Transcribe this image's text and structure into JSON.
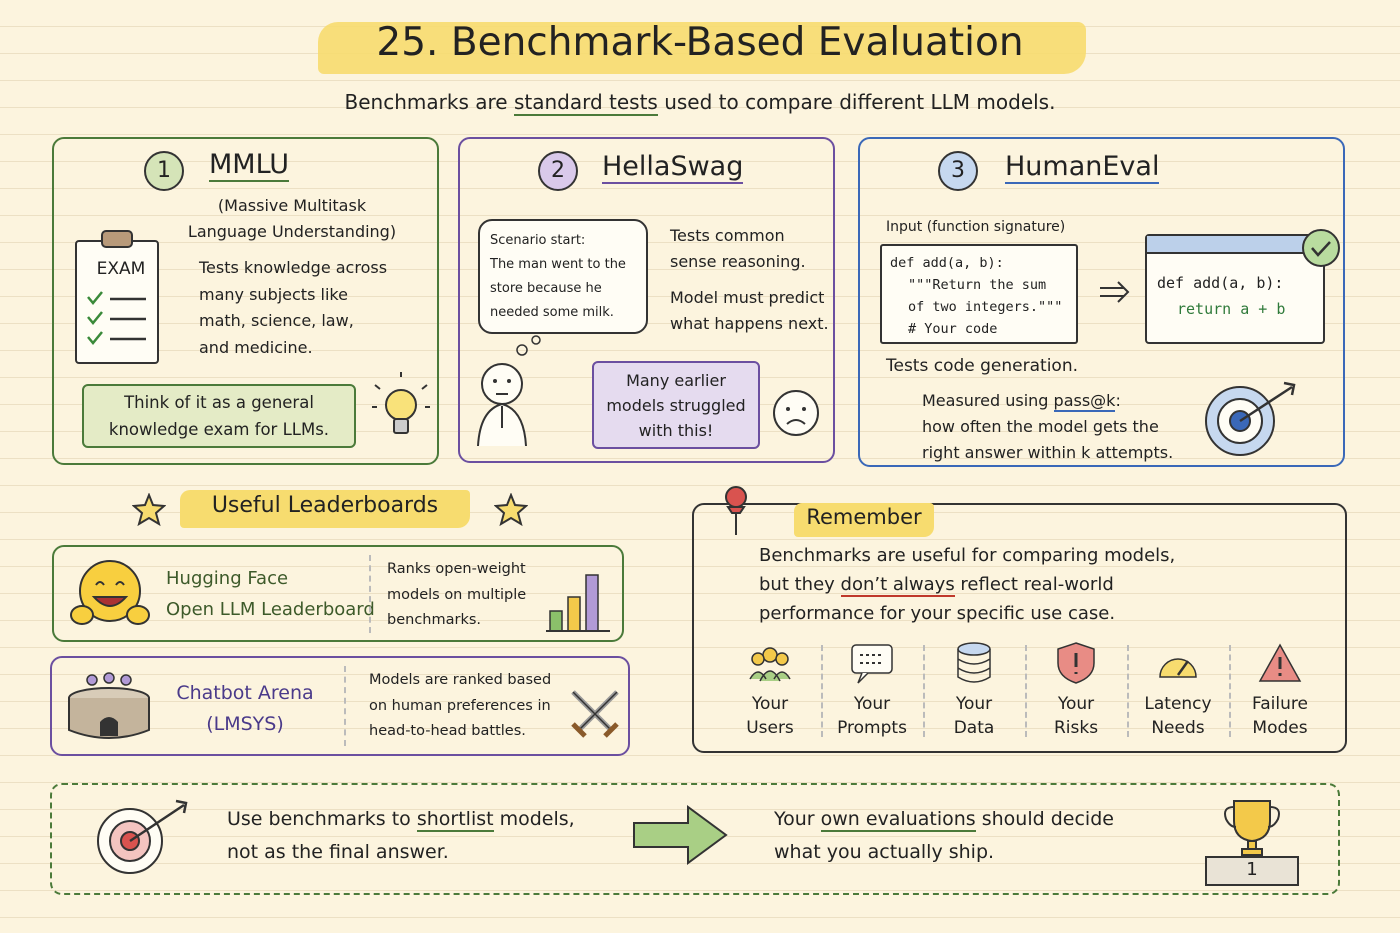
{
  "header": {
    "title": "25. Benchmark-Based Evaluation",
    "subtitle": [
      "Benchmarks are ",
      "standard tests",
      " used to compare different LLM models."
    ]
  },
  "benchmarks": [
    {
      "number": "1",
      "name": "MMLU",
      "full_name": [
        "(Massive Multitask",
        "Language Understanding)"
      ],
      "icon_label": "EXAM",
      "description": [
        "Tests knowledge across",
        "many subjects like",
        "math, science, law,",
        "and medicine."
      ],
      "note": [
        "Think of it as a general",
        "knowledge exam for LLMs."
      ]
    },
    {
      "number": "2",
      "name": "HellaSwag",
      "scenario": [
        "Scenario start:",
        "The man went to the",
        "store because he",
        "needed some milk."
      ],
      "description": [
        "Tests common",
        "sense reasoning."
      ],
      "task": [
        "Model must predict",
        "what happens next."
      ],
      "note": [
        "Many earlier",
        "models struggled",
        "with this!"
      ]
    },
    {
      "number": "3",
      "name": "HumanEval",
      "input_label": "Input (function signature)",
      "input_code": [
        "def add(a, b):",
        "\"\"\"Return the sum",
        "of two integers.\"\"\"",
        "# Your code"
      ],
      "output_code": [
        "def add(a, b):",
        "return a + b"
      ],
      "description": "Tests code generation.",
      "metric": [
        [
          "Measured using ",
          "pass@k",
          ":"
        ],
        [
          "how often the model gets the"
        ],
        [
          "right answer within k attempts."
        ]
      ]
    }
  ],
  "leaderboards": {
    "title": "Useful Leaderboards",
    "items": [
      {
        "name": [
          "Hugging Face",
          "Open LLM Leaderboard"
        ],
        "description": [
          "Ranks open-weight",
          "models on multiple",
          "benchmarks."
        ]
      },
      {
        "name": [
          "Chatbot Arena",
          "(LMSYS)"
        ],
        "description": [
          "Models are ranked based",
          "on human preferences in",
          "head-to-head battles."
        ]
      }
    ]
  },
  "remember": {
    "title": "Remember",
    "text": [
      [
        "Benchmarks are useful for comparing models,"
      ],
      [
        "but they ",
        "don’t always",
        " reflect real-world"
      ],
      [
        "performance for your specific use case."
      ]
    ],
    "factors": [
      [
        "Your",
        "Users"
      ],
      [
        "Your",
        "Prompts"
      ],
      [
        "Your",
        "Data"
      ],
      [
        "Your",
        "Risks"
      ],
      [
        "Latency",
        "Needs"
      ],
      [
        "Failure",
        "Modes"
      ]
    ]
  },
  "takeaway": {
    "left": [
      [
        "Use benchmarks to ",
        "shortlist",
        " models,"
      ],
      [
        "not as the final answer."
      ]
    ],
    "right": [
      [
        "Your ",
        "own evaluations",
        " should decide"
      ],
      [
        "what you actually ship."
      ]
    ],
    "podium_label": "1"
  }
}
